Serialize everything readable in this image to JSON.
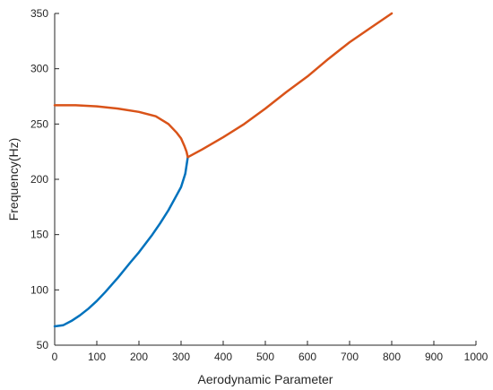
{
  "chart_data": {
    "type": "line",
    "title": "",
    "xlabel": "Aerodynamic Parameter",
    "ylabel": "Frequency(Hz)",
    "xlim": [
      0,
      1000
    ],
    "ylim": [
      50,
      350
    ],
    "xticks": [
      0,
      100,
      200,
      300,
      400,
      500,
      600,
      700,
      800,
      900,
      1000
    ],
    "yticks": [
      50,
      100,
      150,
      200,
      250,
      300,
      350
    ],
    "grid": false,
    "legend": "none",
    "series": [
      {
        "color": "#0072BD",
        "points": [
          [
            0,
            67
          ],
          [
            20,
            68
          ],
          [
            40,
            72
          ],
          [
            60,
            77
          ],
          [
            80,
            83
          ],
          [
            100,
            90
          ],
          [
            120,
            98
          ],
          [
            150,
            111
          ],
          [
            180,
            125
          ],
          [
            200,
            134
          ],
          [
            230,
            149
          ],
          [
            250,
            160
          ],
          [
            270,
            172
          ],
          [
            290,
            186
          ],
          [
            300,
            193
          ],
          [
            310,
            205
          ],
          [
            316,
            220
          ]
        ]
      },
      {
        "color": "#D95319",
        "points": [
          [
            0,
            267
          ],
          [
            50,
            267
          ],
          [
            100,
            266
          ],
          [
            150,
            264
          ],
          [
            200,
            261
          ],
          [
            240,
            257
          ],
          [
            270,
            250
          ],
          [
            290,
            242
          ],
          [
            300,
            237
          ],
          [
            308,
            230
          ],
          [
            313,
            225
          ],
          [
            316,
            220
          ],
          [
            350,
            227
          ],
          [
            400,
            238
          ],
          [
            450,
            250
          ],
          [
            500,
            264
          ],
          [
            550,
            279
          ],
          [
            600,
            293
          ],
          [
            650,
            309
          ],
          [
            700,
            324
          ],
          [
            750,
            337
          ],
          [
            800,
            350
          ]
        ]
      }
    ]
  }
}
